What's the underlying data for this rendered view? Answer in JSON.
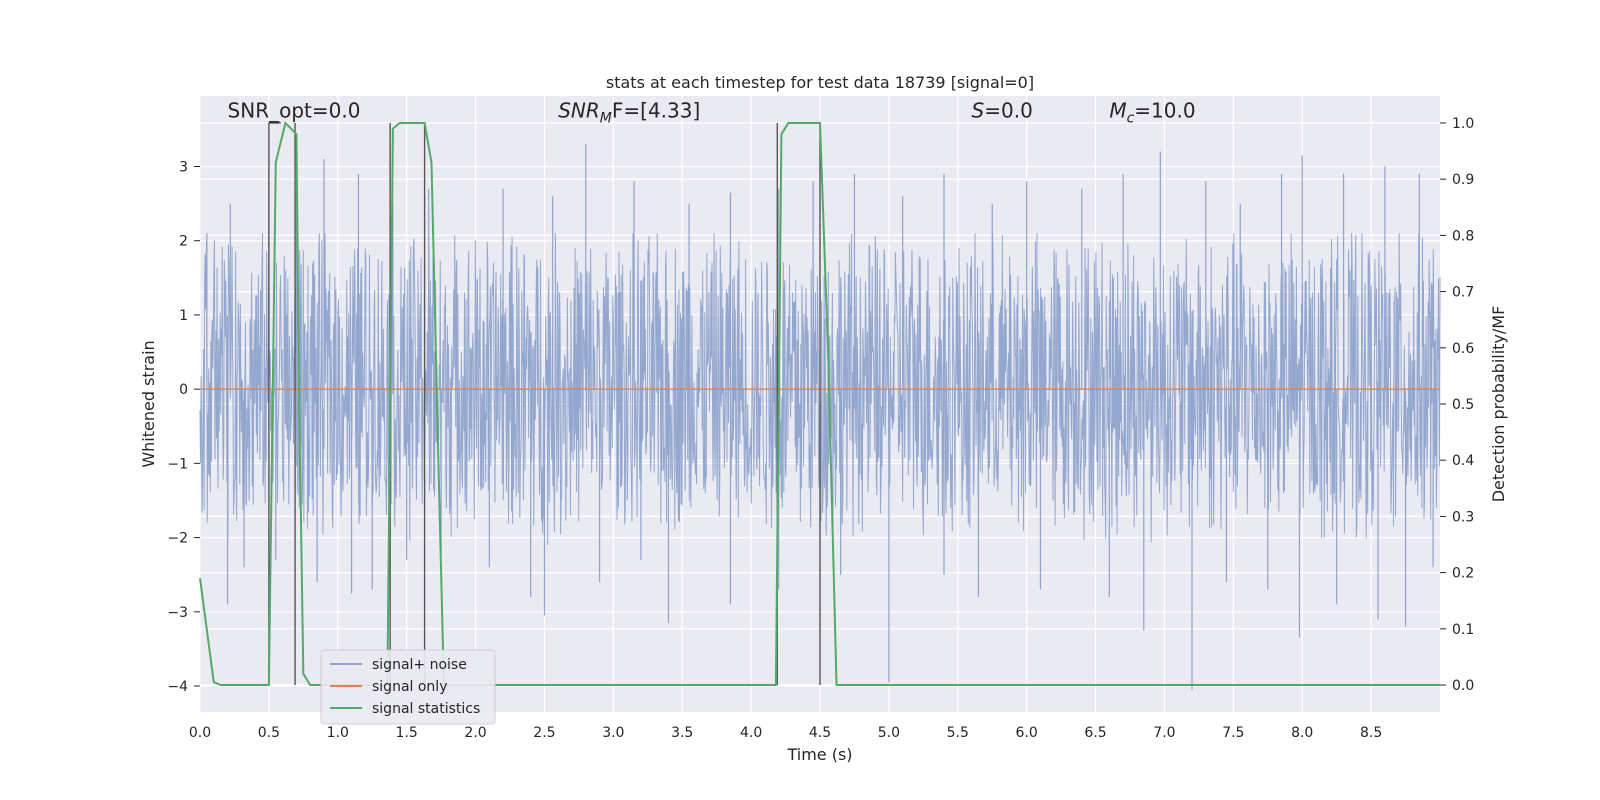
{
  "chart_data": {
    "type": "line",
    "title": "stats at each timestep for test data 18739 [signal=0]",
    "xlabel": "Time (s)",
    "ylabel": "Whitened strain",
    "y2label": "Detection probability/MF",
    "xlim": [
      0.0,
      9.0
    ],
    "ylim": [
      -4.35,
      3.95
    ],
    "y2lim": [
      -0.048,
      1.048
    ],
    "xticks": [
      "0.0",
      "0.5",
      "1.0",
      "1.5",
      "2.0",
      "2.5",
      "3.0",
      "3.5",
      "4.0",
      "4.5",
      "5.0",
      "5.5",
      "6.0",
      "6.5",
      "7.0",
      "7.5",
      "8.0",
      "8.5"
    ],
    "yticks": [
      "3",
      "2",
      "1",
      "0",
      "−1",
      "−2",
      "−3",
      "−4"
    ],
    "y2ticks": [
      "1.0",
      "0.9",
      "0.8",
      "0.7",
      "0.6",
      "0.5",
      "0.4",
      "0.3",
      "0.2",
      "0.1",
      "0.0"
    ],
    "grid": true,
    "legend_position": "lower-left",
    "series": [
      {
        "name": "signal+ noise",
        "color": "#8fa3cc",
        "description": "dense noise, mostly within about −1.8..2.0 with spikes up to ~3.3 and down to ~−4.0",
        "spikes_up": [
          [
            0.05,
            2.1
          ],
          [
            0.22,
            2.5
          ],
          [
            0.5,
            2.97
          ],
          [
            0.7,
            2.7
          ],
          [
            0.9,
            3.1
          ],
          [
            1.15,
            2.9
          ],
          [
            1.4,
            2.5
          ],
          [
            1.66,
            2.7
          ],
          [
            2.2,
            2.7
          ],
          [
            2.56,
            2.6
          ],
          [
            2.8,
            3.3
          ],
          [
            3.15,
            2.8
          ],
          [
            3.55,
            2.5
          ],
          [
            3.85,
            2.65
          ],
          [
            4.2,
            2.7
          ],
          [
            4.45,
            2.8
          ],
          [
            4.75,
            2.9
          ],
          [
            5.1,
            2.6
          ],
          [
            5.4,
            2.9
          ],
          [
            5.75,
            2.5
          ],
          [
            6.0,
            2.8
          ],
          [
            6.4,
            2.7
          ],
          [
            6.7,
            2.9
          ],
          [
            6.97,
            3.2
          ],
          [
            7.3,
            2.8
          ],
          [
            7.55,
            2.5
          ],
          [
            7.85,
            2.9
          ],
          [
            8.0,
            3.15
          ],
          [
            8.3,
            2.9
          ],
          [
            8.6,
            3.0
          ],
          [
            8.85,
            2.9
          ]
        ],
        "spikes_down": [
          [
            0.2,
            -2.9
          ],
          [
            0.32,
            -2.4
          ],
          [
            0.55,
            -2.3
          ],
          [
            0.85,
            -2.6
          ],
          [
            1.1,
            -2.75
          ],
          [
            1.25,
            -2.7
          ],
          [
            1.5,
            -2.3
          ],
          [
            1.75,
            -2.2
          ],
          [
            2.1,
            -2.4
          ],
          [
            2.4,
            -2.8
          ],
          [
            2.5,
            -3.05
          ],
          [
            2.9,
            -2.6
          ],
          [
            3.2,
            -2.3
          ],
          [
            3.4,
            -3.15
          ],
          [
            3.85,
            -2.9
          ],
          [
            4.2,
            -2.7
          ],
          [
            4.65,
            -2.5
          ],
          [
            5.0,
            -3.95
          ],
          [
            5.4,
            -2.5
          ],
          [
            5.65,
            -2.8
          ],
          [
            6.1,
            -2.7
          ],
          [
            6.6,
            -2.8
          ],
          [
            6.85,
            -3.25
          ],
          [
            7.2,
            -4.05
          ],
          [
            7.45,
            -2.6
          ],
          [
            7.75,
            -2.7
          ],
          [
            7.98,
            -3.35
          ],
          [
            8.25,
            -2.9
          ],
          [
            8.55,
            -3.1
          ],
          [
            8.75,
            -3.2
          ],
          [
            8.95,
            -2.4
          ]
        ]
      },
      {
        "name": "signal only",
        "color": "#dd8452",
        "x": [
          0.0,
          9.0
        ],
        "y": [
          0.0,
          0.0
        ]
      },
      {
        "name": "signal statistics",
        "color": "#55a868",
        "axis": "right",
        "x": [
          0.0,
          0.1,
          0.15,
          0.5,
          0.55,
          0.6,
          0.62,
          0.7,
          0.72,
          0.75,
          0.8,
          1.36,
          1.4,
          1.45,
          1.5,
          1.63,
          1.68,
          1.73,
          1.77,
          4.18,
          4.22,
          4.27,
          4.5,
          4.56,
          4.62,
          9.0
        ],
        "y": [
          0.19,
          0.005,
          0.0,
          0.0,
          0.93,
          0.98,
          1.0,
          0.98,
          0.5,
          0.02,
          0.0,
          0.0,
          0.99,
          1.0,
          1.0,
          1.0,
          0.93,
          0.4,
          0.0,
          0.0,
          0.98,
          1.0,
          1.0,
          0.58,
          0.0,
          0.0
        ]
      }
    ],
    "vertical_markers": {
      "color": "#555555",
      "x": [
        0.5,
        0.69,
        1.38,
        1.63,
        4.19,
        4.5
      ],
      "y2_top": 1.0
    },
    "annotations": [
      {
        "text": "SNR_opt=0.0",
        "x": 0.2,
        "y2": 1.01
      },
      {
        "text_main": "SNR",
        "text_sub": "M",
        "text_tail": "F=[4.33]",
        "x": 2.6,
        "y2": 1.01
      },
      {
        "text_main": "S",
        "text_tail": "=0.0",
        "x": 5.6,
        "y2": 1.01
      },
      {
        "text_main": "M",
        "text_sub": "c",
        "text_tail": "=10.0",
        "x": 6.6,
        "y2": 1.01
      }
    ]
  }
}
